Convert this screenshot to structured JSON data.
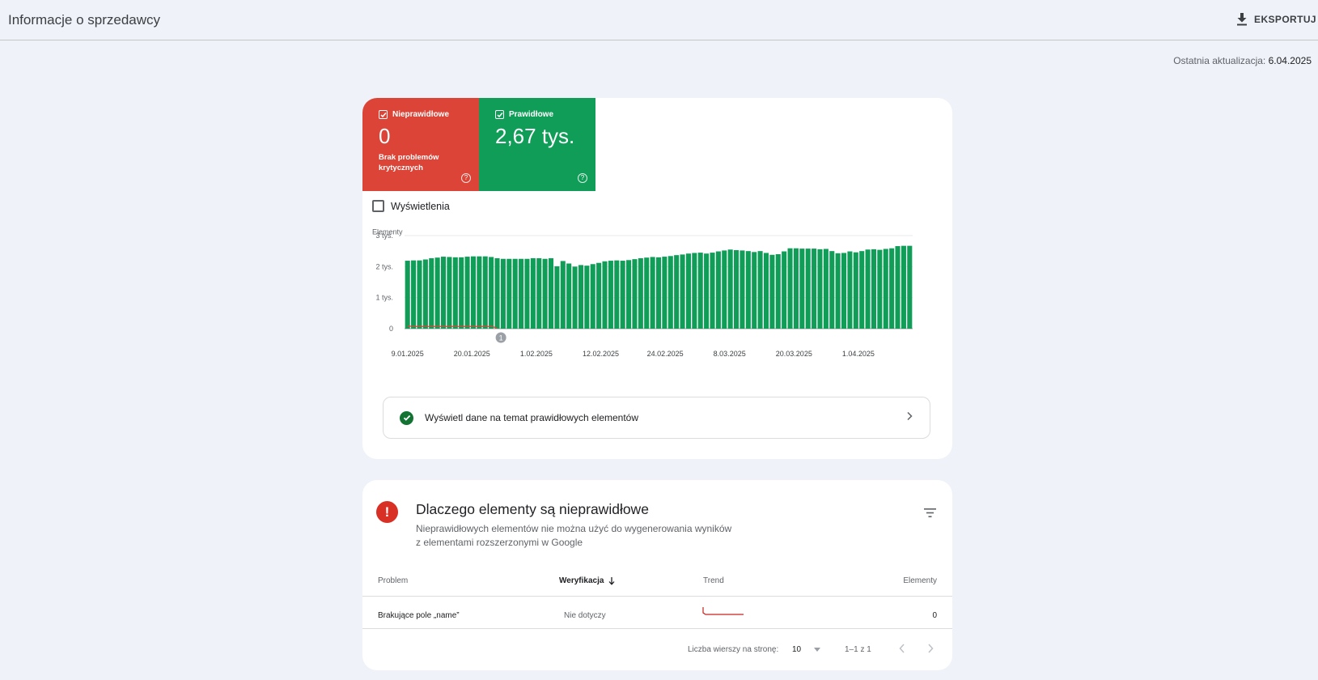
{
  "header": {
    "title": "Informacje o sprzedawcy",
    "export_label": "EKSPORTUJ",
    "last_update_label": "Ostatnia aktualizacja:",
    "last_update_value": "6.04.2025"
  },
  "summary": {
    "invalid": {
      "label": "Nieprawidłowe",
      "value": "0",
      "sub": "Brak problemów krytycznych",
      "color": "#db4437"
    },
    "valid": {
      "label": "Prawidłowe",
      "value": "2,67 tys.",
      "color": "#0f9d58"
    },
    "impressions_label": "Wyświetlenia"
  },
  "chart_data": {
    "type": "bar",
    "ylabel": "Elementy",
    "y_ticks": [
      "0",
      "1 tys.",
      "2 tys.",
      "3 tys."
    ],
    "ylim": [
      0,
      3000
    ],
    "x_tick_labels": [
      "9.01.2025",
      "20.01.2025",
      "1.02.2025",
      "12.02.2025",
      "24.02.2025",
      "8.03.2025",
      "20.03.2025",
      "1.04.2025"
    ],
    "annotation": "1",
    "series": [
      {
        "color": "#0f9d58",
        "values": [
          2190,
          2200,
          2200,
          2230,
          2270,
          2290,
          2320,
          2310,
          2300,
          2300,
          2320,
          2330,
          2330,
          2330,
          2310,
          2270,
          2250,
          2250,
          2250,
          2250,
          2250,
          2270,
          2270,
          2250,
          2270,
          2010,
          2180,
          2100,
          2000,
          2050,
          2030,
          2080,
          2120,
          2170,
          2190,
          2200,
          2190,
          2210,
          2240,
          2270,
          2290,
          2310,
          2300,
          2320,
          2340,
          2370,
          2390,
          2420,
          2440,
          2450,
          2420,
          2450,
          2490,
          2520,
          2550,
          2530,
          2520,
          2500,
          2470,
          2500,
          2440,
          2380,
          2400,
          2490,
          2590,
          2590,
          2580,
          2580,
          2580,
          2560,
          2570,
          2500,
          2430,
          2440,
          2490,
          2460,
          2500,
          2550,
          2560,
          2540,
          2570,
          2590,
          2660,
          2670,
          2670
        ]
      },
      {
        "color": "#db4437",
        "values": [
          60,
          45,
          45,
          45,
          45,
          45,
          45,
          45,
          45,
          45,
          45,
          45,
          45,
          45,
          45,
          0,
          0,
          0,
          0,
          0,
          0,
          0,
          0,
          0,
          0,
          0,
          0,
          0,
          0,
          0,
          0,
          0,
          0,
          0,
          0,
          0,
          0,
          0,
          0,
          0,
          0,
          0,
          0,
          0,
          0,
          0,
          0,
          0,
          0,
          0,
          0,
          0,
          0,
          0,
          0,
          0,
          0,
          0,
          0,
          0,
          0,
          0,
          0,
          0,
          0,
          0,
          0,
          0,
          0,
          0,
          0,
          0,
          0,
          0,
          0,
          0,
          0,
          0,
          0,
          0,
          0,
          0,
          0,
          0,
          0
        ]
      }
    ]
  },
  "valid_link": {
    "label": "Wyświetl dane na temat prawidłowych elementów"
  },
  "issues": {
    "title": "Dlaczego elementy są nieprawidłowe",
    "desc_line1": "Nieprawidłowych elementów nie można użyć do wygenerowania wyników",
    "desc_line2": "z elementami rozszerzonymi w Google",
    "columns": {
      "problem": "Problem",
      "verification": "Weryfikacja",
      "trend": "Trend",
      "items": "Elementy"
    },
    "rows": [
      {
        "problem": "Brakujące pole „name”",
        "verification": "Nie dotyczy",
        "items": "0"
      }
    ],
    "pager": {
      "rows_label": "Liczba wierszy na stronę:",
      "rows_value": "10",
      "range": "1–1 z 1"
    }
  }
}
